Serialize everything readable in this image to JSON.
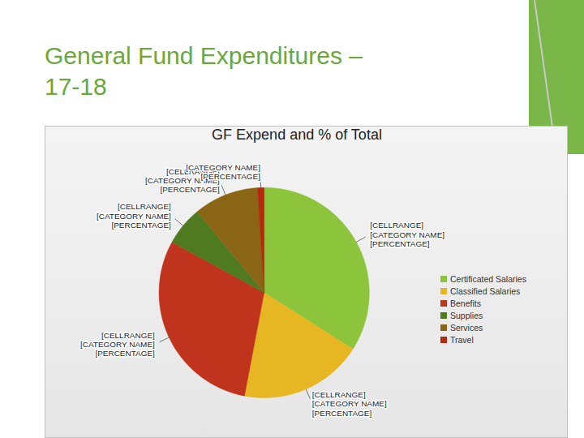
{
  "slide_title": "General Fund Expenditures – 17-18",
  "chart_data": {
    "type": "pie",
    "title": "GF Expend and % of Total",
    "categories": [
      "Certificated Salaries",
      "Classified Salaries",
      "Benefits",
      "Supplies",
      "Services",
      "Travel"
    ],
    "values": [
      34,
      19,
      30,
      6,
      10,
      1
    ],
    "colors": [
      "#8cc43c",
      "#e6b722",
      "#c0341d",
      "#4f7a1f",
      "#8b6516",
      "#b5280c"
    ],
    "value_labels": [
      "[CELLRANGE]\n[CATEGORY NAME]\n[PERCENTAGE]",
      "[CELLRANGE]\n[CATEGORY NAME]\n[PERCENTAGE]",
      "[CELLRANGE]\n[CATEGORY NAME]\n[PERCENTAGE]",
      "[CELLRANGE]\n[CATEGORY NAME]\n[PERCENTAGE]",
      "[CELLRANGE]\n[CATEGORY NAME]\n[PERCENTAGE]",
      "[CATEGORY NAME]\n[PERCENTAGE]"
    ],
    "legend": "right"
  }
}
